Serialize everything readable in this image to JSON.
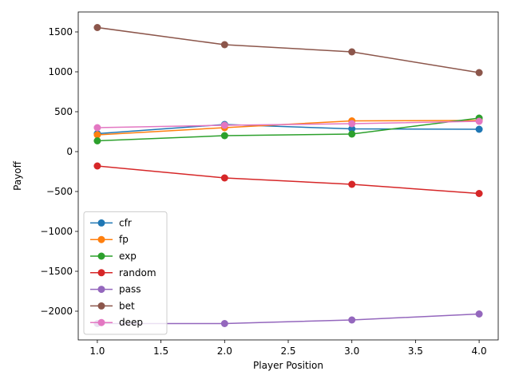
{
  "chart_data": {
    "type": "line",
    "title": "",
    "xlabel": "Player Position",
    "ylabel": "Payoff",
    "xlim": [
      0.85,
      4.15
    ],
    "ylim": [
      -2360,
      1750
    ],
    "xticks": [
      1.0,
      1.5,
      2.0,
      2.5,
      3.0,
      3.5,
      4.0
    ],
    "xtick_labels": [
      "1.0",
      "1.5",
      "2.0",
      "2.5",
      "3.0",
      "3.5",
      "4.0"
    ],
    "yticks": [
      1500,
      1000,
      500,
      0,
      -500,
      -1000,
      -1500,
      -2000
    ],
    "ytick_labels": [
      "1500",
      "1000",
      "500",
      "0",
      "−500",
      "−1000",
      "−1500",
      "−2000"
    ],
    "grid": false,
    "legend_position": "lower-left",
    "x": [
      1,
      2,
      3,
      4
    ],
    "series": [
      {
        "name": "cfr",
        "color": "#1f77b4",
        "values": [
          225,
          340,
          285,
          280
        ]
      },
      {
        "name": "fp",
        "color": "#ff7f0e",
        "values": [
          210,
          300,
          385,
          390
        ]
      },
      {
        "name": "exp",
        "color": "#2ca02c",
        "values": [
          135,
          200,
          220,
          420
        ]
      },
      {
        "name": "random",
        "color": "#d62728",
        "values": [
          -180,
          -330,
          -410,
          -525
        ]
      },
      {
        "name": "pass",
        "color": "#9467bd",
        "values": [
          -2155,
          -2155,
          -2110,
          -2035
        ]
      },
      {
        "name": "bet",
        "color": "#8c564b",
        "values": [
          1555,
          1340,
          1250,
          990
        ]
      },
      {
        "name": "deep",
        "color": "#e377c2",
        "values": [
          300,
          330,
          350,
          380
        ]
      }
    ]
  }
}
